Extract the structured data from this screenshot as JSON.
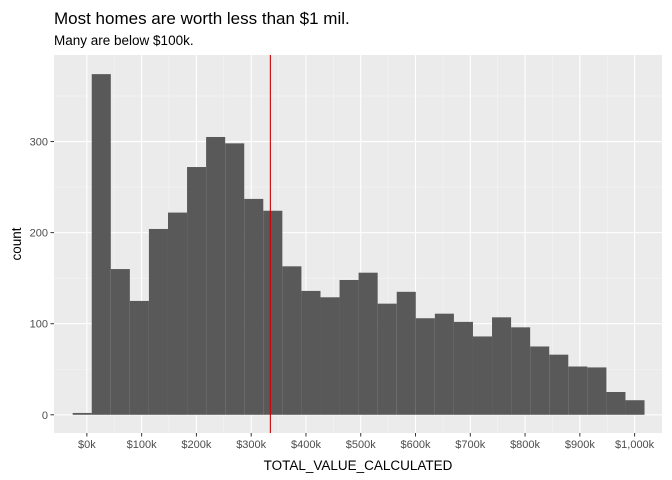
{
  "chart_data": {
    "type": "bar",
    "title": "Most homes are worth less than $1 mil.",
    "subtitle": "Many are below $100k.",
    "xlabel": "TOTAL_VALUE_CALCULATED",
    "ylabel": "count",
    "xlim": [
      -60000,
      1050000
    ],
    "ylim": [
      -20,
      395
    ],
    "x_ticks": [
      {
        "value": 0,
        "label": "$0k"
      },
      {
        "value": 100000,
        "label": "$100k"
      },
      {
        "value": 200000,
        "label": "$200k"
      },
      {
        "value": 300000,
        "label": "$300k"
      },
      {
        "value": 400000,
        "label": "$400k"
      },
      {
        "value": 500000,
        "label": "$500k"
      },
      {
        "value": 600000,
        "label": "$600k"
      },
      {
        "value": 700000,
        "label": "$700k"
      },
      {
        "value": 800000,
        "label": "$800k"
      },
      {
        "value": 900000,
        "label": "$900k"
      },
      {
        "value": 1000000,
        "label": "$1,000k"
      }
    ],
    "y_ticks": [
      {
        "value": 0,
        "label": "0"
      },
      {
        "value": 100,
        "label": "100"
      },
      {
        "value": 200,
        "label": "200"
      },
      {
        "value": 300,
        "label": "300"
      }
    ],
    "bin_width": 34800,
    "bin_centers": [
      -8500,
      26300,
      61100,
      95900,
      130700,
      165500,
      200300,
      235100,
      269900,
      304700,
      339500,
      374300,
      409100,
      443900,
      478700,
      513500,
      548300,
      583100,
      617900,
      652700,
      687500,
      722300,
      757100,
      791900,
      826700,
      861500,
      896300,
      931100,
      965900,
      1000700
    ],
    "values": [
      2,
      374,
      160,
      125,
      204,
      222,
      272,
      305,
      298,
      237,
      224,
      163,
      136,
      129,
      148,
      156,
      122,
      135,
      106,
      111,
      102,
      86,
      107,
      96,
      75,
      66,
      53,
      52,
      25,
      16
    ],
    "reference_line": {
      "x": 335000,
      "color": "#cc0000"
    },
    "grid": true,
    "colors": {
      "bar": "#595959",
      "panel": "#ebebeb",
      "grid_major": "#ffffff",
      "grid_minor": "#f5f5f5"
    }
  }
}
